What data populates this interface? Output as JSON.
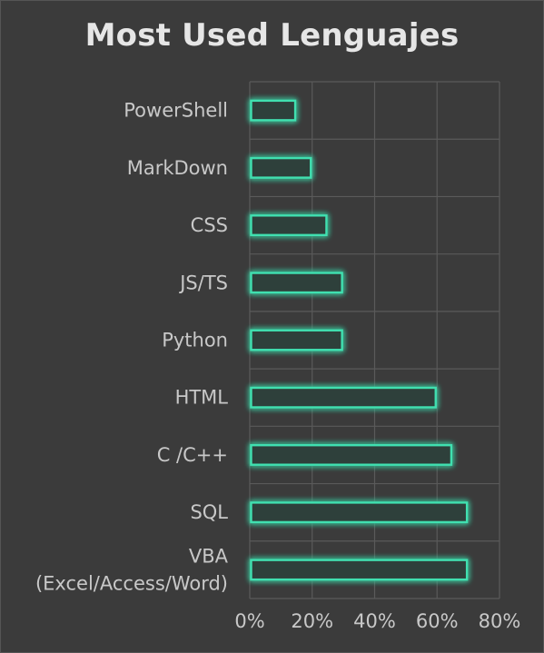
{
  "chart_data": {
    "type": "bar",
    "orientation": "horizontal",
    "title": "Most Used Lenguajes",
    "categories": [
      "PowerShell",
      "MarkDown",
      "CSS",
      "JS/TS",
      "Python",
      "HTML",
      "C /C++",
      "SQL",
      "VBA\n(Excel/Access/Word)"
    ],
    "values": [
      15,
      20,
      25,
      30,
      30,
      60,
      65,
      70,
      70
    ],
    "xlim": [
      0,
      80
    ],
    "xticks": [
      0,
      20,
      40,
      60,
      80
    ],
    "xtick_labels": [
      "0%",
      "20%",
      "40%",
      "60%",
      "80%"
    ],
    "xlabel": "",
    "ylabel": "",
    "grid": true,
    "colors": {
      "bar_outline": "#3fe0b0",
      "bar_fill": "#2f3f3a",
      "glow": "#1fd0a0",
      "grid": "#5a5a5a",
      "text": "#c8c8c8",
      "background": "#3b3b3b"
    }
  }
}
